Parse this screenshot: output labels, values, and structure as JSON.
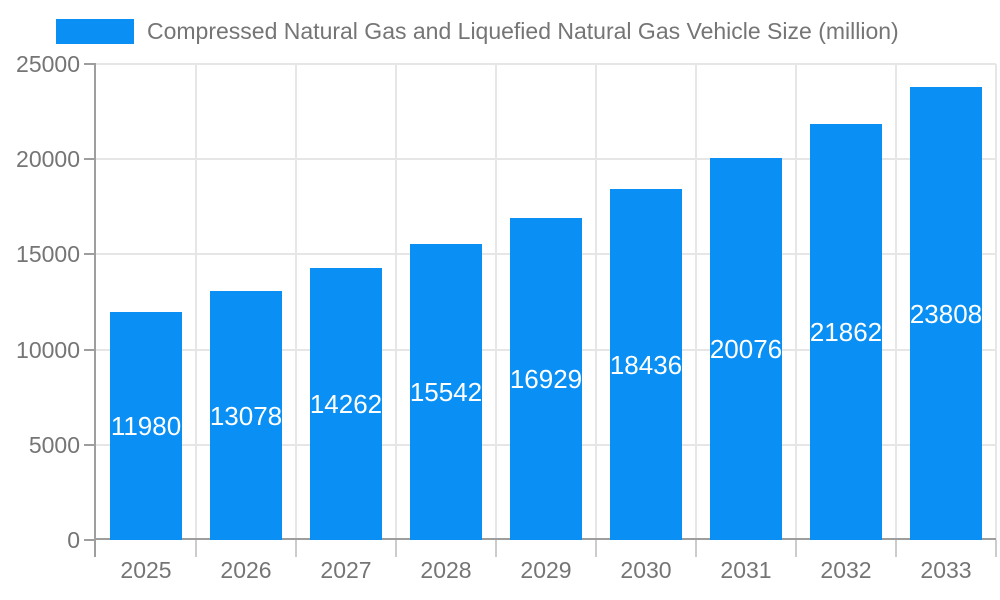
{
  "legend": {
    "label": "Compressed Natural Gas and Liquefied Natural Gas Vehicle Size (million)"
  },
  "chart_data": {
    "type": "bar",
    "title": "Compressed Natural Gas and Liquefied Natural Gas Vehicle Size (million)",
    "categories": [
      "2025",
      "2026",
      "2027",
      "2028",
      "2029",
      "2030",
      "2031",
      "2032",
      "2033"
    ],
    "values": [
      11980,
      13078,
      14262,
      15542,
      16929,
      18436,
      20076,
      21862,
      23808
    ],
    "xlabel": "",
    "ylabel": "",
    "ylim": [
      0,
      25000
    ],
    "yticks": [
      0,
      5000,
      10000,
      15000,
      20000,
      25000
    ],
    "grid": true,
    "legend_position": "top-left",
    "colors": {
      "bar": "#0a90f5",
      "axis_line": "#9e9e9e",
      "gridline": "#e6e6e6",
      "minor_tick": "#cccccc",
      "axis_text": "#757575",
      "value_label": "#ffffff",
      "background": "#ffffff"
    }
  }
}
